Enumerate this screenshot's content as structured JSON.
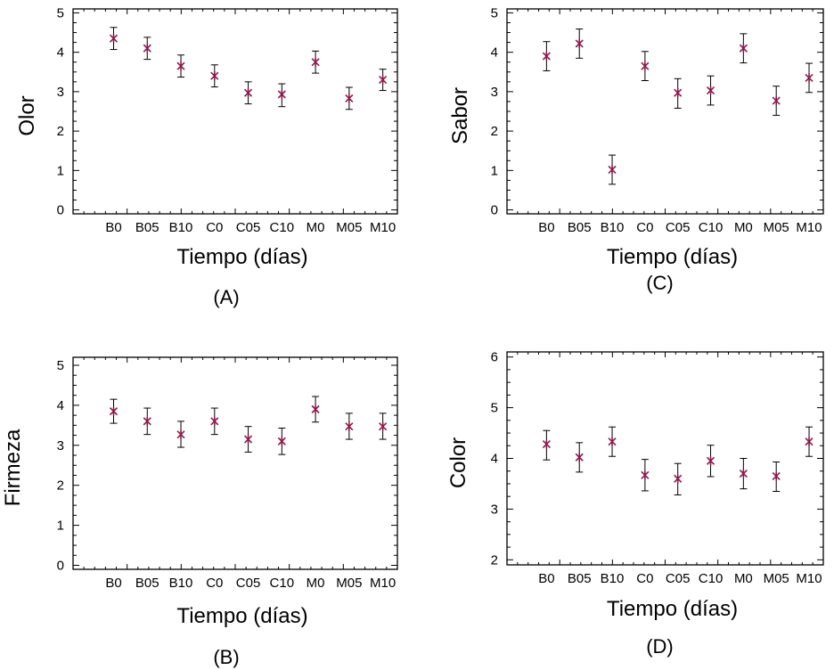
{
  "figure": {
    "marker_color": "#8b1a4a",
    "panels": [
      {
        "panel_label": "(A)",
        "xlabel": "Tiempo (días)",
        "ylabel": "Olor"
      },
      {
        "panel_label": "(C)",
        "xlabel": "Tiempo (días)",
        "ylabel": "Sabor"
      },
      {
        "panel_label": "(B)",
        "xlabel": "Tiempo (días)",
        "ylabel": "Firmeza"
      },
      {
        "panel_label": "(D)",
        "xlabel": "Tiempo (días)",
        "ylabel": "Color"
      }
    ]
  },
  "chart_data": [
    {
      "type": "scatter",
      "panel_label": "(A)",
      "categories": [
        "B0",
        "B05",
        "B10",
        "C0",
        "C05",
        "C10",
        "M0",
        "M05",
        "M10"
      ],
      "values": [
        4.35,
        4.1,
        3.65,
        3.4,
        2.97,
        2.93,
        3.75,
        2.83,
        3.3
      ],
      "error_low": [
        4.07,
        3.82,
        3.37,
        3.12,
        2.69,
        2.62,
        3.47,
        2.55,
        3.03
      ],
      "error_high": [
        4.63,
        4.38,
        3.93,
        3.68,
        3.25,
        3.2,
        4.03,
        3.11,
        3.57
      ],
      "yticks": [
        0,
        1,
        2,
        3,
        4,
        5
      ],
      "ylim": [
        -0.1,
        5.1
      ],
      "xlabel": "Tiempo (días)",
      "ylabel": "Olor",
      "grid": false
    },
    {
      "type": "scatter",
      "panel_label": "(C)",
      "categories": [
        "B0",
        "B05",
        "B10",
        "C0",
        "C05",
        "C10",
        "M0",
        "M05",
        "M10"
      ],
      "values": [
        3.9,
        4.22,
        1.02,
        3.65,
        2.97,
        3.03,
        4.1,
        2.77,
        3.35
      ],
      "error_low": [
        3.53,
        3.85,
        0.65,
        3.28,
        2.58,
        2.66,
        3.73,
        2.4,
        2.98
      ],
      "error_high": [
        4.27,
        4.59,
        1.39,
        4.02,
        3.33,
        3.4,
        4.47,
        3.14,
        3.72
      ],
      "yticks": [
        0,
        1,
        2,
        3,
        4,
        5
      ],
      "ylim": [
        -0.1,
        5.1
      ],
      "xlabel": "Tiempo (días)",
      "ylabel": "Sabor",
      "grid": false
    },
    {
      "type": "scatter",
      "panel_label": "(B)",
      "categories": [
        "B0",
        "B05",
        "B10",
        "C0",
        "C05",
        "C10",
        "M0",
        "M05",
        "M10"
      ],
      "values": [
        3.85,
        3.6,
        3.27,
        3.6,
        3.15,
        3.1,
        3.9,
        3.47,
        3.47
      ],
      "error_low": [
        3.55,
        3.27,
        2.95,
        3.27,
        2.83,
        2.77,
        3.58,
        3.15,
        3.15
      ],
      "error_high": [
        4.15,
        3.93,
        3.6,
        3.93,
        3.47,
        3.43,
        4.22,
        3.8,
        3.8
      ],
      "yticks": [
        0,
        1,
        2,
        3,
        4,
        5
      ],
      "ylim": [
        -0.1,
        5.2
      ],
      "xlabel": "Tiempo (días)",
      "ylabel": "Firmeza",
      "grid": false
    },
    {
      "type": "scatter",
      "panel_label": "(D)",
      "categories": [
        "B0",
        "B05",
        "B10",
        "C0",
        "C05",
        "C10",
        "M0",
        "M05",
        "M10"
      ],
      "values": [
        4.28,
        4.02,
        4.33,
        3.67,
        3.6,
        3.95,
        3.7,
        3.65,
        4.33
      ],
      "error_low": [
        3.97,
        3.73,
        4.04,
        3.36,
        3.28,
        3.64,
        3.4,
        3.35,
        4.04
      ],
      "error_high": [
        4.55,
        4.31,
        4.62,
        3.98,
        3.9,
        4.26,
        4.0,
        3.93,
        4.62
      ],
      "yticks": [
        2,
        3,
        4,
        5,
        6
      ],
      "ylim": [
        1.9,
        6.1
      ],
      "xlabel": "Tiempo (días)",
      "ylabel": "Color",
      "grid": false
    }
  ]
}
